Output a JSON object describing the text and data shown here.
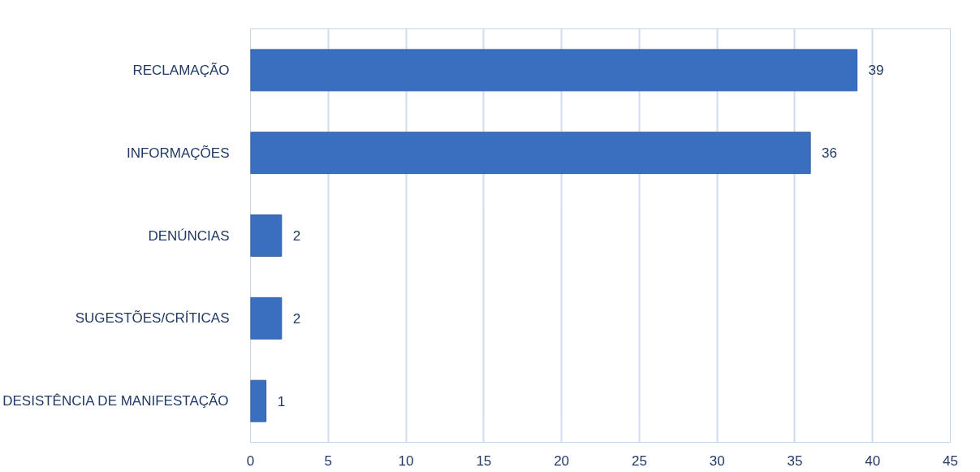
{
  "chart_data": {
    "type": "bar",
    "orientation": "horizontal",
    "categories": [
      "RECLAMAÇÃO",
      "INFORMAÇÕES",
      "DENÚNCIAS",
      "SUGESTÕES/CRÍTICAS",
      "DESISTÊNCIA DE MANIFESTAÇÃO"
    ],
    "values": [
      39,
      36,
      2,
      2,
      1
    ],
    "color": "#3a6fbf",
    "xlim": [
      0,
      45
    ],
    "xticks": [
      0,
      5,
      10,
      15,
      20,
      25,
      30,
      35,
      40,
      45
    ],
    "grid": "x",
    "data_labels": true
  }
}
